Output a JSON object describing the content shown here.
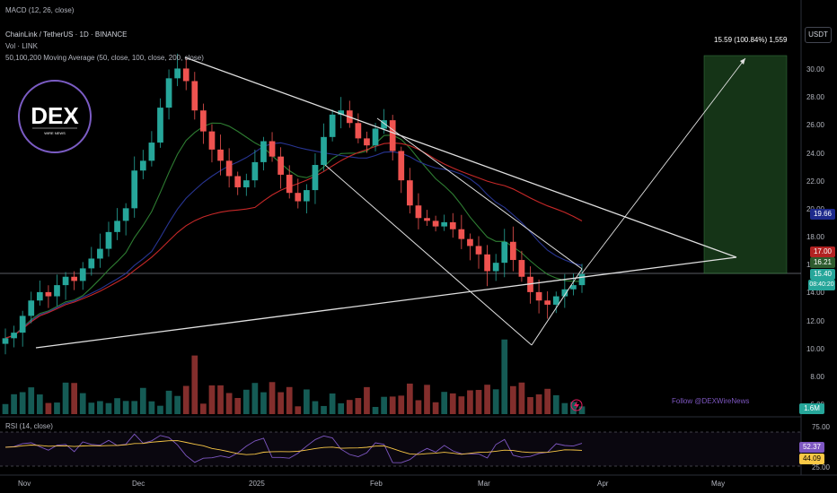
{
  "header": {
    "macd_title": "MACD (12, 26, close)",
    "symbol_line": "ChainLink / TetherUS · 1D · BINANCE",
    "vol_line": "Vol · LINK",
    "ma_line": "50,100,200 Moving Average (50, close, 100, close, 200, close)"
  },
  "currency": "USDT",
  "logo": {
    "text": "DEX",
    "sub": "WIRE NEWS"
  },
  "measure_label": "15.59 (100.84%) 1,559",
  "watermark": "Follow @DEXWireNews",
  "price_axis": [
    "30.00",
    "28.00",
    "26.00",
    "24.00",
    "22.00",
    "20.00",
    "18.00",
    "16.00",
    "14.00",
    "12.00",
    "10.00",
    "8.00",
    "6.00"
  ],
  "price_badges": [
    {
      "name": "ma100-badge",
      "text": "19.66",
      "color": "#1e2a8c",
      "price": 19.66
    },
    {
      "name": "ma200-badge",
      "text": "17.00",
      "color": "#b22222",
      "price": 17.0
    },
    {
      "name": "ma50-badge",
      "text": "16.21",
      "color": "#2e5c2e",
      "price": 16.21
    },
    {
      "name": "last-price-badge",
      "text": "15.40",
      "color": "#26a69a",
      "price": 15.4
    },
    {
      "name": "countdown-badge",
      "text": "08:40:20",
      "color": "#26a69a",
      "price": 14.6
    }
  ],
  "volume_badge": "1.6M",
  "rsi": {
    "title": "RSI (14, close)",
    "axis": [
      "75.00",
      "25.00"
    ],
    "value_badge": "52.37",
    "ma_badge": "44.09"
  },
  "time_axis": [
    "Nov",
    "Dec",
    "2025",
    "Feb",
    "Mar",
    "Apr",
    "May"
  ],
  "chart_data": {
    "type": "candlestick",
    "ylim": [
      5,
      32
    ],
    "series": [
      {
        "name": "close",
        "values": [
          10.8,
          11.2,
          12.4,
          13.5,
          14.1,
          13.8,
          14.6,
          15.2,
          14.9,
          15.8,
          16.5,
          17.2,
          18.4,
          19.2,
          20.1,
          22.8,
          23.5,
          24.8,
          27.3,
          29.4,
          30.1,
          29.2,
          27.1,
          25.6,
          24.3,
          23.5,
          22.4,
          21.6,
          22.1,
          23.4,
          24.9,
          23.8,
          22.5,
          21.2,
          20.6,
          21.4,
          23.2,
          25.2,
          26.8,
          27.1,
          26.2,
          25.1,
          24.6,
          25.8,
          26.4,
          24.2,
          22.1,
          20.3,
          19.4,
          19.2,
          18.8,
          19.1,
          18.6,
          17.9,
          17.4,
          16.8,
          15.6,
          16.2,
          17.7,
          16.4,
          15.2,
          14.1,
          13.5,
          13.2,
          13.8,
          14.3,
          14.6,
          15.4
        ]
      }
    ],
    "ma50": 16.21,
    "ma100": 19.66,
    "ma200": 17.0,
    "rsi_value": 52.37,
    "rsi_ma": 44.09
  }
}
